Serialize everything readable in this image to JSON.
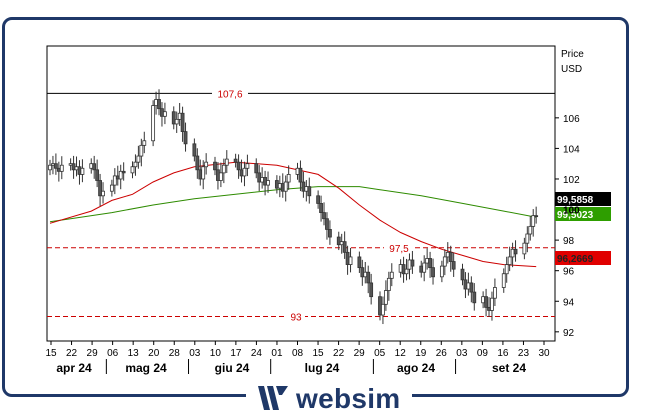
{
  "brand": {
    "name": "websim"
  },
  "colors": {
    "frame": "#1f3868",
    "candle_up": "#ffffff",
    "candle_down": "#555555",
    "ma_short": "#cc0000",
    "ma_long": "#2e8b00",
    "ref_line": "#cc0000",
    "price_tag": "#000000",
    "ma_long_tag": "#2e9e00",
    "ma_short_tag": "#e00000"
  },
  "chart_data": {
    "type": "candlestick",
    "ylabel": "Price",
    "unit": "USD",
    "ylim": [
      91.4,
      110.7
    ],
    "yticks": [
      92,
      94,
      96,
      98,
      100,
      102,
      104,
      106
    ],
    "grid": false,
    "x_start": "2024-04-15",
    "x_end": "2024-09-30",
    "xticks": [
      "15",
      "22",
      "29",
      "06",
      "13",
      "20",
      "28",
      "03",
      "10",
      "17",
      "24",
      "01",
      "08",
      "15",
      "22",
      "29",
      "05",
      "12",
      "19",
      "26",
      "03",
      "09",
      "16",
      "23",
      "30"
    ],
    "months": [
      {
        "label": "apr 24"
      },
      {
        "label": "mag 24"
      },
      {
        "label": "giu 24"
      },
      {
        "label": "lug 24"
      },
      {
        "label": "ago 24"
      },
      {
        "label": "set 24"
      }
    ],
    "reference_lines": [
      {
        "label": "107,6",
        "value": 107.6,
        "style": "solid",
        "color": "#000000"
      },
      {
        "label": "97,5",
        "value": 97.5,
        "style": "dashed",
        "color": "#cc0000"
      },
      {
        "label": "93",
        "value": 93.0,
        "style": "dashed",
        "color": "#cc0000"
      }
    ],
    "last_values": [
      {
        "label": "99,5858",
        "value": 99.5858,
        "series": "price"
      },
      {
        "label": "99,5023",
        "value": 99.5023,
        "series": "ma_long"
      },
      {
        "label": "96,2669",
        "value": 96.2669,
        "series": "ma_short"
      }
    ],
    "series_close": [
      {
        "d": "2024-04-15",
        "c": 102.9
      },
      {
        "d": "2024-04-16",
        "c": 103.0
      },
      {
        "d": "2024-04-17",
        "c": 102.7
      },
      {
        "d": "2024-04-18",
        "c": 102.5
      },
      {
        "d": "2024-04-19",
        "c": 102.9
      },
      {
        "d": "2024-04-22",
        "c": 103.0
      },
      {
        "d": "2024-04-23",
        "c": 102.6
      },
      {
        "d": "2024-04-24",
        "c": 102.8
      },
      {
        "d": "2024-04-25",
        "c": 102.3
      },
      {
        "d": "2024-04-26",
        "c": 102.7
      },
      {
        "d": "2024-04-29",
        "c": 103.0
      },
      {
        "d": "2024-04-30",
        "c": 102.6
      },
      {
        "d": "2024-05-01",
        "c": 101.9
      },
      {
        "d": "2024-05-02",
        "c": 100.9
      },
      {
        "d": "2024-05-03",
        "c": 101.2
      },
      {
        "d": "2024-05-06",
        "c": 101.6
      },
      {
        "d": "2024-05-07",
        "c": 102.2
      },
      {
        "d": "2024-05-08",
        "c": 102.0
      },
      {
        "d": "2024-05-09",
        "c": 102.5
      },
      {
        "d": "2024-05-10",
        "c": 102.4
      },
      {
        "d": "2024-05-13",
        "c": 102.8
      },
      {
        "d": "2024-05-14",
        "c": 103.1
      },
      {
        "d": "2024-05-15",
        "c": 103.5
      },
      {
        "d": "2024-05-16",
        "c": 104.2
      },
      {
        "d": "2024-05-17",
        "c": 104.5
      },
      {
        "d": "2024-05-20",
        "c": 106.8
      },
      {
        "d": "2024-05-21",
        "c": 107.2
      },
      {
        "d": "2024-05-22",
        "c": 106.6
      },
      {
        "d": "2024-05-23",
        "c": 106.1
      },
      {
        "d": "2024-05-24",
        "c": 106.4
      },
      {
        "d": "2024-05-27",
        "c": 105.6
      },
      {
        "d": "2024-05-28",
        "c": 105.9
      },
      {
        "d": "2024-05-29",
        "c": 106.3
      },
      {
        "d": "2024-05-30",
        "c": 105.1
      },
      {
        "d": "2024-05-31",
        "c": 104.3
      },
      {
        "d": "2024-06-03",
        "c": 103.5
      },
      {
        "d": "2024-06-04",
        "c": 102.6
      },
      {
        "d": "2024-06-05",
        "c": 102.0
      },
      {
        "d": "2024-06-06",
        "c": 102.8
      },
      {
        "d": "2024-06-07",
        "c": 103.1
      },
      {
        "d": "2024-06-10",
        "c": 102.6
      },
      {
        "d": "2024-06-11",
        "c": 101.9
      },
      {
        "d": "2024-06-12",
        "c": 102.4
      },
      {
        "d": "2024-06-13",
        "c": 102.9
      },
      {
        "d": "2024-06-14",
        "c": 103.3
      },
      {
        "d": "2024-06-17",
        "c": 103.1
      },
      {
        "d": "2024-06-18",
        "c": 102.6
      },
      {
        "d": "2024-06-19",
        "c": 102.2
      },
      {
        "d": "2024-06-20",
        "c": 102.7
      },
      {
        "d": "2024-06-21",
        "c": 103.0
      },
      {
        "d": "2024-06-24",
        "c": 102.4
      },
      {
        "d": "2024-06-25",
        "c": 101.8
      },
      {
        "d": "2024-06-26",
        "c": 102.1
      },
      {
        "d": "2024-06-27",
        "c": 101.6
      },
      {
        "d": "2024-06-28",
        "c": 101.9
      },
      {
        "d": "2024-07-01",
        "c": 101.4
      },
      {
        "d": "2024-07-02",
        "c": 101.7
      },
      {
        "d": "2024-07-03",
        "c": 101.2
      },
      {
        "d": "2024-07-04",
        "c": 101.8
      },
      {
        "d": "2024-07-05",
        "c": 102.3
      },
      {
        "d": "2024-07-08",
        "c": 102.7
      },
      {
        "d": "2024-07-09",
        "c": 101.8
      },
      {
        "d": "2024-07-10",
        "c": 101.2
      },
      {
        "d": "2024-07-11",
        "c": 101.5
      },
      {
        "d": "2024-07-12",
        "c": 100.9
      },
      {
        "d": "2024-07-15",
        "c": 100.4
      },
      {
        "d": "2024-07-16",
        "c": 99.8
      },
      {
        "d": "2024-07-17",
        "c": 99.4
      },
      {
        "d": "2024-07-18",
        "c": 98.7
      },
      {
        "d": "2024-07-19",
        "c": 98.2
      },
      {
        "d": "2024-07-22",
        "c": 97.7
      },
      {
        "d": "2024-07-23",
        "c": 97.9
      },
      {
        "d": "2024-07-24",
        "c": 97.2
      },
      {
        "d": "2024-07-25",
        "c": 96.4
      },
      {
        "d": "2024-07-26",
        "c": 96.9
      },
      {
        "d": "2024-07-29",
        "c": 96.2
      },
      {
        "d": "2024-07-30",
        "c": 95.6
      },
      {
        "d": "2024-07-31",
        "c": 95.9
      },
      {
        "d": "2024-08-01",
        "c": 95.2
      },
      {
        "d": "2024-08-02",
        "c": 94.3
      },
      {
        "d": "2024-08-05",
        "c": 93.1
      },
      {
        "d": "2024-08-06",
        "c": 93.8
      },
      {
        "d": "2024-08-07",
        "c": 94.7
      },
      {
        "d": "2024-08-08",
        "c": 95.5
      },
      {
        "d": "2024-08-09",
        "c": 95.9
      },
      {
        "d": "2024-08-12",
        "c": 96.4
      },
      {
        "d": "2024-08-13",
        "c": 95.8
      },
      {
        "d": "2024-08-14",
        "c": 96.1
      },
      {
        "d": "2024-08-15",
        "c": 96.7
      },
      {
        "d": "2024-08-16",
        "c": 96.3
      },
      {
        "d": "2024-08-19",
        "c": 95.9
      },
      {
        "d": "2024-08-20",
        "c": 96.5
      },
      {
        "d": "2024-08-21",
        "c": 96.8
      },
      {
        "d": "2024-08-22",
        "c": 96.2
      },
      {
        "d": "2024-08-23",
        "c": 95.6
      },
      {
        "d": "2024-08-26",
        "c": 96.3
      },
      {
        "d": "2024-08-27",
        "c": 96.9
      },
      {
        "d": "2024-08-28",
        "c": 97.2
      },
      {
        "d": "2024-08-29",
        "c": 96.6
      },
      {
        "d": "2024-08-30",
        "c": 96.1
      },
      {
        "d": "2024-09-02",
        "c": 95.4
      },
      {
        "d": "2024-09-03",
        "c": 94.8
      },
      {
        "d": "2024-09-04",
        "c": 95.2
      },
      {
        "d": "2024-09-05",
        "c": 94.6
      },
      {
        "d": "2024-09-06",
        "c": 93.9
      },
      {
        "d": "2024-09-09",
        "c": 94.3
      },
      {
        "d": "2024-09-10",
        "c": 93.6
      },
      {
        "d": "2024-09-11",
        "c": 93.4
      },
      {
        "d": "2024-09-12",
        "c": 94.2
      },
      {
        "d": "2024-09-13",
        "c": 94.9
      },
      {
        "d": "2024-09-16",
        "c": 95.8
      },
      {
        "d": "2024-09-17",
        "c": 96.4
      },
      {
        "d": "2024-09-18",
        "c": 96.9
      },
      {
        "d": "2024-09-19",
        "c": 97.4
      },
      {
        "d": "2024-09-20",
        "c": 97.1
      },
      {
        "d": "2024-09-23",
        "c": 97.8
      },
      {
        "d": "2024-09-24",
        "c": 98.4
      },
      {
        "d": "2024-09-25",
        "c": 98.9
      },
      {
        "d": "2024-09-26",
        "c": 99.6
      },
      {
        "d": "2024-09-27",
        "c": 99.59
      }
    ],
    "ma_short": [
      {
        "d": "2024-04-15",
        "v": 99.1
      },
      {
        "d": "2024-04-29",
        "v": 99.9
      },
      {
        "d": "2024-05-06",
        "v": 100.6
      },
      {
        "d": "2024-05-13",
        "v": 101.0
      },
      {
        "d": "2024-05-20",
        "v": 101.8
      },
      {
        "d": "2024-05-27",
        "v": 102.4
      },
      {
        "d": "2024-06-03",
        "v": 102.8
      },
      {
        "d": "2024-06-17",
        "v": 103.1
      },
      {
        "d": "2024-07-01",
        "v": 102.9
      },
      {
        "d": "2024-07-15",
        "v": 102.3
      },
      {
        "d": "2024-07-22",
        "v": 101.4
      },
      {
        "d": "2024-07-29",
        "v": 100.3
      },
      {
        "d": "2024-08-05",
        "v": 99.3
      },
      {
        "d": "2024-08-12",
        "v": 98.5
      },
      {
        "d": "2024-08-19",
        "v": 97.9
      },
      {
        "d": "2024-08-26",
        "v": 97.4
      },
      {
        "d": "2024-09-02",
        "v": 97.0
      },
      {
        "d": "2024-09-09",
        "v": 96.6
      },
      {
        "d": "2024-09-16",
        "v": 96.4
      },
      {
        "d": "2024-09-27",
        "v": 96.27
      }
    ],
    "ma_long": [
      {
        "d": "2024-04-15",
        "v": 99.2
      },
      {
        "d": "2024-04-22",
        "v": 99.4
      },
      {
        "d": "2024-05-06",
        "v": 99.8
      },
      {
        "d": "2024-05-20",
        "v": 100.3
      },
      {
        "d": "2024-06-03",
        "v": 100.7
      },
      {
        "d": "2024-06-17",
        "v": 101.0
      },
      {
        "d": "2024-07-01",
        "v": 101.3
      },
      {
        "d": "2024-07-15",
        "v": 101.5
      },
      {
        "d": "2024-07-29",
        "v": 101.5
      },
      {
        "d": "2024-08-05",
        "v": 101.3
      },
      {
        "d": "2024-08-19",
        "v": 100.9
      },
      {
        "d": "2024-09-02",
        "v": 100.4
      },
      {
        "d": "2024-09-16",
        "v": 99.9
      },
      {
        "d": "2024-09-27",
        "v": 99.5
      }
    ]
  }
}
